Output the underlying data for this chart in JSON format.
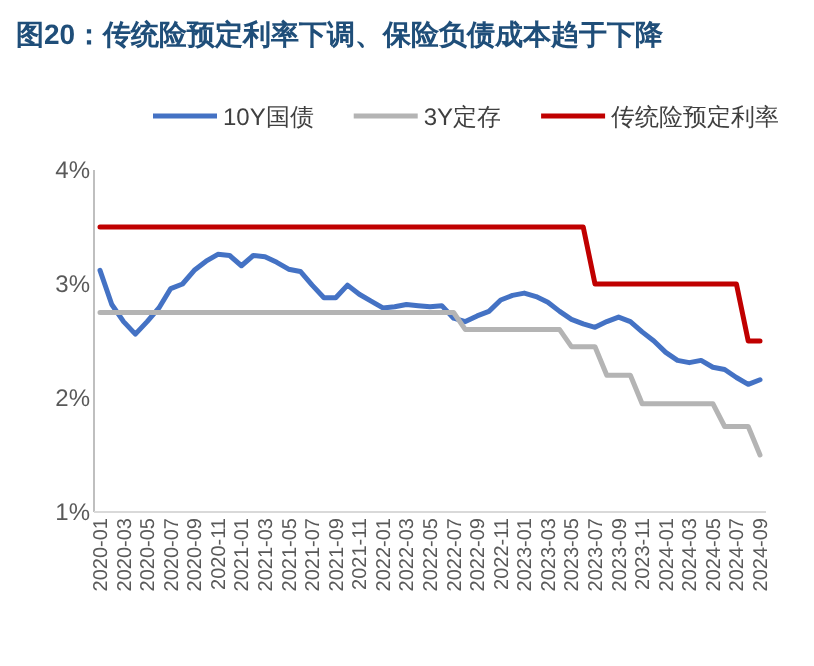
{
  "chart_data": {
    "type": "line",
    "title": "图20：传统险预定利率下调、保险负债成本趋于下降",
    "legend": "top",
    "categories": [
      "2020-01",
      null,
      "2020-03",
      null,
      "2020-05",
      null,
      "2020-07",
      null,
      "2020-09",
      null,
      "2020-11",
      null,
      "2021-01",
      null,
      "2021-03",
      null,
      "2021-05",
      null,
      "2021-07",
      null,
      "2021-09",
      null,
      "2021-11",
      null,
      "2022-01",
      null,
      "2022-03",
      null,
      "2022-05",
      null,
      "2022-07",
      null,
      "2022-09",
      null,
      "2022-11",
      null,
      "2023-01",
      null,
      "2023-03",
      null,
      "2023-05",
      null,
      "2023-07",
      null,
      "2023-09",
      null,
      "2023-11",
      null,
      "2024-01",
      null,
      "2024-03",
      null,
      "2024-05",
      null,
      "2024-07",
      null,
      "2024-09"
    ],
    "ylim": [
      1,
      4
    ],
    "yticks": [
      {
        "value": 1,
        "label": "1%"
      },
      {
        "value": 2,
        "label": "2%"
      },
      {
        "value": 3,
        "label": "3%"
      },
      {
        "value": 4,
        "label": "4%"
      }
    ],
    "series": [
      {
        "name": "10Y国债",
        "color": "#4472c4",
        "values": [
          3.12,
          2.82,
          2.67,
          2.56,
          2.67,
          2.79,
          2.96,
          3.0,
          3.12,
          3.2,
          3.26,
          3.25,
          3.16,
          3.25,
          3.24,
          3.19,
          3.13,
          3.11,
          2.99,
          2.88,
          2.88,
          2.99,
          2.91,
          2.85,
          2.79,
          2.8,
          2.82,
          2.81,
          2.8,
          2.81,
          2.7,
          2.67,
          2.72,
          2.76,
          2.86,
          2.9,
          2.92,
          2.89,
          2.84,
          2.76,
          2.69,
          2.65,
          2.62,
          2.67,
          2.71,
          2.67,
          2.58,
          2.5,
          2.4,
          2.33,
          2.31,
          2.33,
          2.27,
          2.25,
          2.18,
          2.12,
          2.16
        ]
      },
      {
        "name": "3Y定存",
        "color": "#b4b4b4",
        "values": [
          2.75,
          2.75,
          2.75,
          2.75,
          2.75,
          2.75,
          2.75,
          2.75,
          2.75,
          2.75,
          2.75,
          2.75,
          2.75,
          2.75,
          2.75,
          2.75,
          2.75,
          2.75,
          2.75,
          2.75,
          2.75,
          2.75,
          2.75,
          2.75,
          2.75,
          2.75,
          2.75,
          2.75,
          2.75,
          2.75,
          2.75,
          2.6,
          2.6,
          2.6,
          2.6,
          2.6,
          2.6,
          2.6,
          2.6,
          2.6,
          2.45,
          2.45,
          2.45,
          2.2,
          2.2,
          2.2,
          1.95,
          1.95,
          1.95,
          1.95,
          1.95,
          1.95,
          1.95,
          1.75,
          1.75,
          1.75,
          1.5
        ]
      },
      {
        "name": "传统险预定利率",
        "color": "#c00000",
        "values": [
          3.5,
          3.5,
          3.5,
          3.5,
          3.5,
          3.5,
          3.5,
          3.5,
          3.5,
          3.5,
          3.5,
          3.5,
          3.5,
          3.5,
          3.5,
          3.5,
          3.5,
          3.5,
          3.5,
          3.5,
          3.5,
          3.5,
          3.5,
          3.5,
          3.5,
          3.5,
          3.5,
          3.5,
          3.5,
          3.5,
          3.5,
          3.5,
          3.5,
          3.5,
          3.5,
          3.5,
          3.5,
          3.5,
          3.5,
          3.5,
          3.5,
          3.5,
          3.0,
          3.0,
          3.0,
          3.0,
          3.0,
          3.0,
          3.0,
          3.0,
          3.0,
          3.0,
          3.0,
          3.0,
          3.0,
          2.5,
          2.5
        ]
      }
    ]
  }
}
